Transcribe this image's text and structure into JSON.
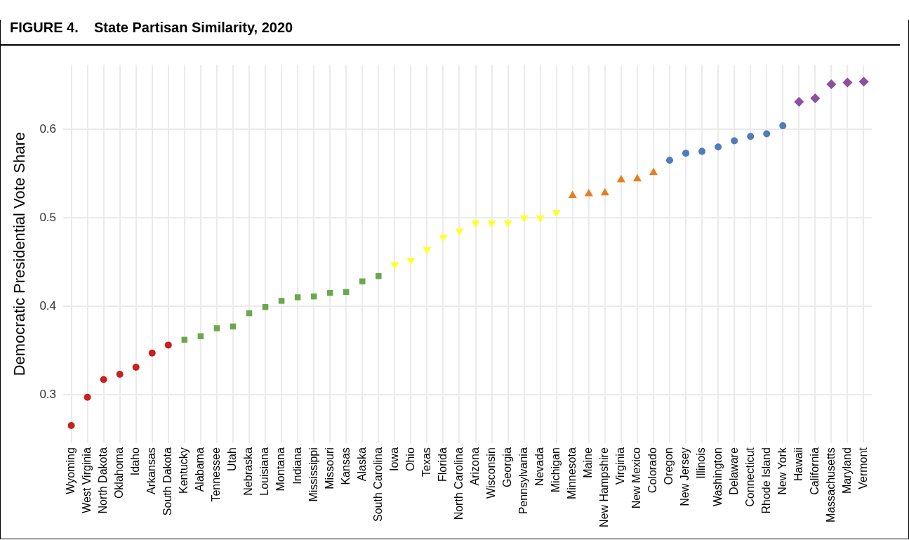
{
  "chart_data": {
    "type": "scatter",
    "title": "FIGURE 4.    State Partisan Similarity, 2020",
    "ylabel": "Democratic Presidential Vote Share",
    "categories": [
      "Wyoming",
      "West Virginia",
      "North Dakota",
      "Oklahoma",
      "Idaho",
      "Arkansas",
      "South Dakota",
      "Kentucky",
      "Alabama",
      "Tennessee",
      "Utah",
      "Nebraska",
      "Louisiana",
      "Montana",
      "Indiana",
      "Mississippi",
      "Missouri",
      "Kansas",
      "Alaska",
      "South Carolina",
      "Iowa",
      "Ohio",
      "Texas",
      "Florida",
      "North Carolina",
      "Arizona",
      "Wisconsin",
      "Georgia",
      "Pennsylvania",
      "Nevada",
      "Michigan",
      "Minnesota",
      "Maine",
      "New Hampshire",
      "Virginia",
      "New Mexico",
      "Colorado",
      "Oregon",
      "New Jersey",
      "Illinois",
      "Washington",
      "Delaware",
      "Connecticut",
      "Rhode Island",
      "New York",
      "Hawaii",
      "California",
      "Massachusetts",
      "Maryland",
      "Vermont"
    ],
    "series": [
      {
        "color": "#c9211e",
        "marker": "circle",
        "values": [
          0.265,
          0.297,
          0.317,
          0.323,
          0.331,
          0.347,
          0.356,
          null,
          null,
          null,
          null,
          null,
          null,
          null,
          null,
          null,
          null,
          null,
          null,
          null,
          null,
          null,
          null,
          null,
          null,
          null,
          null,
          null,
          null,
          null,
          null,
          null,
          null,
          null,
          null,
          null,
          null,
          null,
          null,
          null,
          null,
          null,
          null,
          null,
          null,
          null,
          null,
          null,
          null,
          null
        ]
      },
      {
        "color": "#6aa84f",
        "marker": "square",
        "values": [
          null,
          null,
          null,
          null,
          null,
          null,
          null,
          0.362,
          0.366,
          0.375,
          0.377,
          0.392,
          0.399,
          0.406,
          0.41,
          0.411,
          0.415,
          0.416,
          0.428,
          0.434,
          null,
          null,
          null,
          null,
          null,
          null,
          null,
          null,
          null,
          null,
          null,
          null,
          null,
          null,
          null,
          null,
          null,
          null,
          null,
          null,
          null,
          null,
          null,
          null,
          null,
          null,
          null,
          null,
          null,
          null
        ]
      },
      {
        "color": "#ffff33",
        "marker": "triangle-down",
        "values": [
          null,
          null,
          null,
          null,
          null,
          null,
          null,
          null,
          null,
          null,
          null,
          null,
          null,
          null,
          null,
          null,
          null,
          null,
          null,
          null,
          0.447,
          0.452,
          0.464,
          0.478,
          0.485,
          0.494,
          0.494,
          0.494,
          0.5,
          0.5,
          0.506,
          null,
          null,
          null,
          null,
          null,
          null,
          null,
          null,
          null,
          null,
          null,
          null,
          null,
          null,
          null,
          null,
          null,
          null,
          null
        ]
      },
      {
        "color": "#e67e22",
        "marker": "triangle",
        "values": [
          null,
          null,
          null,
          null,
          null,
          null,
          null,
          null,
          null,
          null,
          null,
          null,
          null,
          null,
          null,
          null,
          null,
          null,
          null,
          null,
          null,
          null,
          null,
          null,
          null,
          null,
          null,
          null,
          null,
          null,
          null,
          0.525,
          0.527,
          0.528,
          0.543,
          0.544,
          0.551,
          null,
          null,
          null,
          null,
          null,
          null,
          null,
          null,
          null,
          null,
          null,
          null,
          null
        ]
      },
      {
        "color": "#4f7cba",
        "marker": "circle",
        "values": [
          null,
          null,
          null,
          null,
          null,
          null,
          null,
          null,
          null,
          null,
          null,
          null,
          null,
          null,
          null,
          null,
          null,
          null,
          null,
          null,
          null,
          null,
          null,
          null,
          null,
          null,
          null,
          null,
          null,
          null,
          null,
          null,
          null,
          null,
          null,
          null,
          null,
          0.565,
          0.573,
          0.575,
          0.58,
          0.587,
          0.592,
          0.595,
          0.604,
          null,
          null,
          null,
          null,
          null
        ]
      },
      {
        "color": "#8e4fa0",
        "marker": "diamond",
        "values": [
          null,
          null,
          null,
          null,
          null,
          null,
          null,
          null,
          null,
          null,
          null,
          null,
          null,
          null,
          null,
          null,
          null,
          null,
          null,
          null,
          null,
          null,
          null,
          null,
          null,
          null,
          null,
          null,
          null,
          null,
          null,
          null,
          null,
          null,
          null,
          null,
          null,
          null,
          null,
          null,
          null,
          null,
          null,
          null,
          null,
          0.631,
          0.635,
          0.651,
          0.653,
          0.654
        ]
      }
    ],
    "ylim": [
      0.245,
      0.673
    ],
    "yticks": [
      0.3,
      0.4,
      0.5,
      0.6
    ],
    "grid": true,
    "legend": false
  }
}
